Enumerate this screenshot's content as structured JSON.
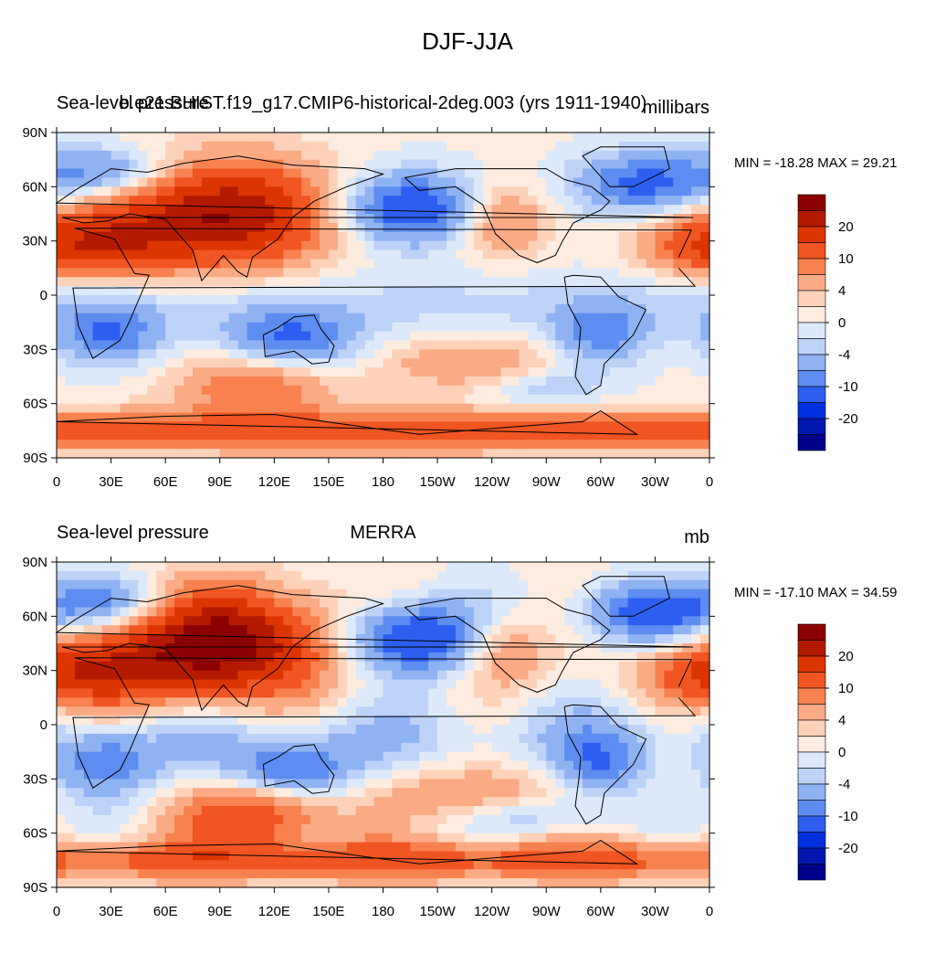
{
  "title": "DJF-JJA",
  "panels": [
    {
      "left_label": "Sea-level pressure",
      "center_label": "b.e21.BHIST.f19_g17.CMIP6-historical-2deg.003 (yrs 1911-1940)",
      "units": "millibars",
      "minmax": "MIN = -18.28 MAX =  29.21"
    },
    {
      "left_label": "Sea-level pressure",
      "center_label": "MERRA",
      "units": "mb",
      "minmax": "MIN = -17.10 MAX =  34.59"
    }
  ],
  "lat_labels": [
    "90N",
    "60N",
    "30N",
    "0",
    "30S",
    "60S",
    "90S"
  ],
  "lon_labels": [
    "0",
    "30E",
    "60E",
    "90E",
    "120E",
    "150E",
    "180",
    "150W",
    "120W",
    "90W",
    "60W",
    "30W",
    "0"
  ],
  "colorbar": {
    "labels": [
      "20",
      "10",
      "4",
      "0",
      "-4",
      "-10",
      "-20"
    ],
    "colors": [
      "#8b0000",
      "#b31a00",
      "#dc3500",
      "#f05522",
      "#f7824f",
      "#fbaa86",
      "#fdd2b8",
      "#fdecdf",
      "#dce9fa",
      "#bcd3f7",
      "#8fb2f2",
      "#5e8cf0",
      "#2e5ef0",
      "#0030e0",
      "#0018b0",
      "#00008b"
    ]
  }
}
